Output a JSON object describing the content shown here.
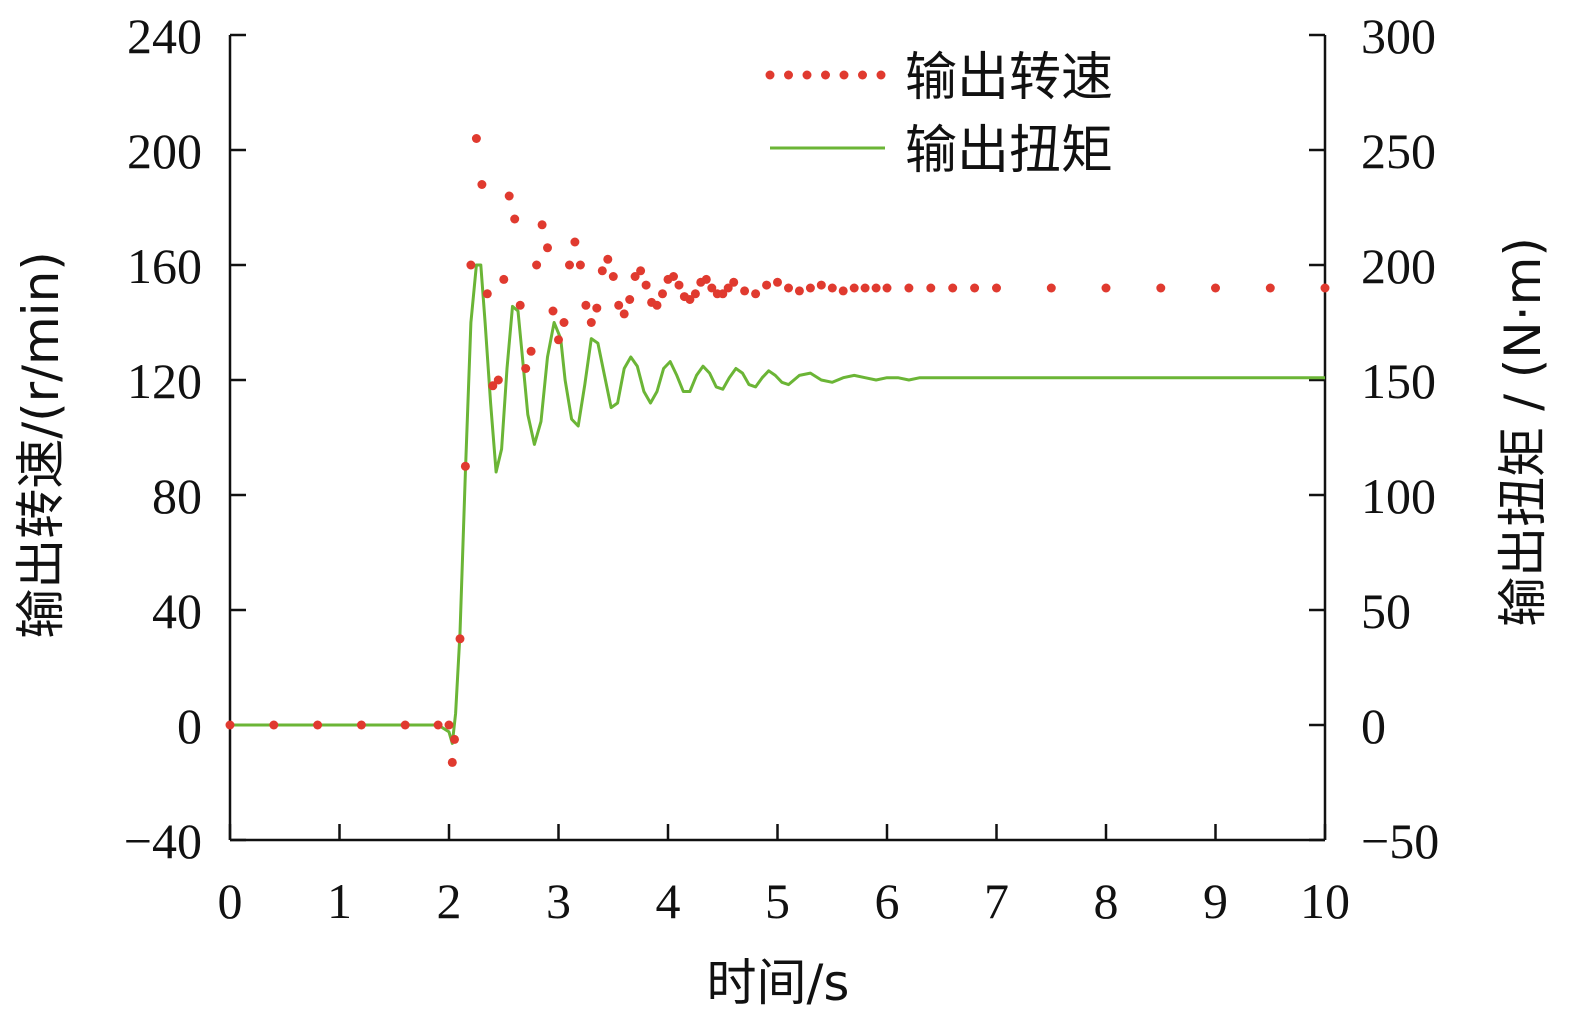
{
  "chart_data": {
    "type": "line",
    "xlabel": "时间/s",
    "ylabel_left": "输出转速/(r/min)",
    "ylabel_right": "输出扭矩 / (N·m)",
    "xlim": [
      0,
      10
    ],
    "ylim_left": [
      -40,
      240
    ],
    "ylim_right": [
      -50,
      300
    ],
    "x_ticks": [
      0,
      1,
      2,
      3,
      4,
      5,
      6,
      7,
      8,
      9,
      10
    ],
    "y_left_ticks": [
      -40,
      0,
      40,
      80,
      120,
      160,
      200,
      240
    ],
    "y_right_ticks": [
      -50,
      0,
      50,
      100,
      150,
      200,
      250,
      300
    ],
    "x_tick_labels": [
      "0",
      "1",
      "2",
      "3",
      "4",
      "5",
      "6",
      "7",
      "8",
      "9",
      "10"
    ],
    "y_left_tick_labels": [
      "−40",
      "0",
      "40",
      "80",
      "120",
      "160",
      "200",
      "240"
    ],
    "y_right_tick_labels": [
      "−50",
      "0",
      "50",
      "100",
      "150",
      "200",
      "250",
      "300"
    ],
    "grid": false,
    "legend_position": "top-right",
    "series": [
      {
        "name": "输出转速",
        "axis": "left",
        "style": "dotted",
        "color": "#e03a2f",
        "x": [
          0,
          0.4,
          0.8,
          1.2,
          1.6,
          1.9,
          2.0,
          2.03,
          2.05,
          2.1,
          2.15,
          2.2,
          2.25,
          2.3,
          2.35,
          2.4,
          2.45,
          2.5,
          2.55,
          2.6,
          2.65,
          2.7,
          2.75,
          2.8,
          2.85,
          2.9,
          2.95,
          3.0,
          3.05,
          3.1,
          3.15,
          3.2,
          3.25,
          3.3,
          3.35,
          3.4,
          3.45,
          3.5,
          3.55,
          3.6,
          3.65,
          3.7,
          3.75,
          3.8,
          3.85,
          3.9,
          3.95,
          4.0,
          4.05,
          4.1,
          4.15,
          4.2,
          4.25,
          4.3,
          4.35,
          4.4,
          4.45,
          4.5,
          4.55,
          4.6,
          4.7,
          4.8,
          4.9,
          5.0,
          5.1,
          5.2,
          5.3,
          5.4,
          5.5,
          5.6,
          5.7,
          5.8,
          5.9,
          6.0,
          6.2,
          6.4,
          6.6,
          6.8,
          7.0,
          7.5,
          8.0,
          8.5,
          9.0,
          9.5,
          10.0
        ],
        "values": [
          0,
          0,
          0,
          0,
          0,
          0,
          0,
          -13,
          -5,
          30,
          90,
          160,
          204,
          188,
          150,
          118,
          120,
          155,
          184,
          176,
          146,
          124,
          130,
          160,
          174,
          166,
          144,
          134,
          140,
          160,
          168,
          160,
          146,
          140,
          145,
          158,
          162,
          156,
          146,
          143,
          148,
          156,
          158,
          153,
          147,
          146,
          150,
          155,
          156,
          153,
          149,
          148,
          150,
          154,
          155,
          152,
          150,
          150,
          152,
          154,
          151,
          150,
          153,
          154,
          152,
          151,
          152,
          153,
          152,
          151,
          152,
          152,
          152,
          152,
          152,
          152,
          152,
          152,
          152,
          152,
          152,
          152,
          152,
          152,
          152
        ]
      },
      {
        "name": "输出扭矩",
        "axis": "right",
        "style": "solid",
        "color": "#6bb536",
        "x": [
          0,
          0.5,
          1.0,
          1.5,
          1.9,
          2.0,
          2.03,
          2.06,
          2.1,
          2.15,
          2.2,
          2.25,
          2.29,
          2.33,
          2.38,
          2.43,
          2.48,
          2.53,
          2.58,
          2.63,
          2.67,
          2.72,
          2.78,
          2.84,
          2.9,
          2.96,
          3.02,
          3.06,
          3.12,
          3.18,
          3.24,
          3.3,
          3.36,
          3.42,
          3.48,
          3.54,
          3.6,
          3.66,
          3.72,
          3.78,
          3.84,
          3.9,
          3.96,
          4.02,
          4.08,
          4.14,
          4.2,
          4.26,
          4.32,
          4.38,
          4.44,
          4.5,
          4.56,
          4.62,
          4.68,
          4.74,
          4.8,
          4.86,
          4.92,
          4.98,
          5.04,
          5.1,
          5.2,
          5.3,
          5.4,
          5.5,
          5.6,
          5.7,
          5.8,
          5.9,
          6.0,
          6.1,
          6.2,
          6.3,
          6.4,
          6.5,
          6.6,
          6.7,
          6.8,
          7.0,
          7.5,
          8.0,
          8.5,
          9.0,
          9.5,
          10.0
        ],
        "values": [
          0,
          0,
          0,
          0,
          0,
          -3,
          -8,
          5,
          40,
          110,
          175,
          200,
          200,
          175,
          140,
          110,
          120,
          155,
          182,
          180,
          160,
          135,
          122,
          132,
          160,
          175,
          168,
          150,
          133,
          130,
          148,
          168,
          166,
          152,
          138,
          140,
          155,
          160,
          156,
          145,
          140,
          145,
          155,
          158,
          152,
          145,
          145,
          152,
          156,
          153,
          147,
          146,
          151,
          155,
          153,
          148,
          147,
          151,
          154,
          152,
          149,
          148,
          152,
          153,
          150,
          149,
          151,
          152,
          151,
          150,
          151,
          151,
          150,
          151,
          151,
          151,
          151,
          151,
          151,
          151,
          151,
          151,
          151,
          151,
          151,
          151
        ]
      }
    ]
  }
}
